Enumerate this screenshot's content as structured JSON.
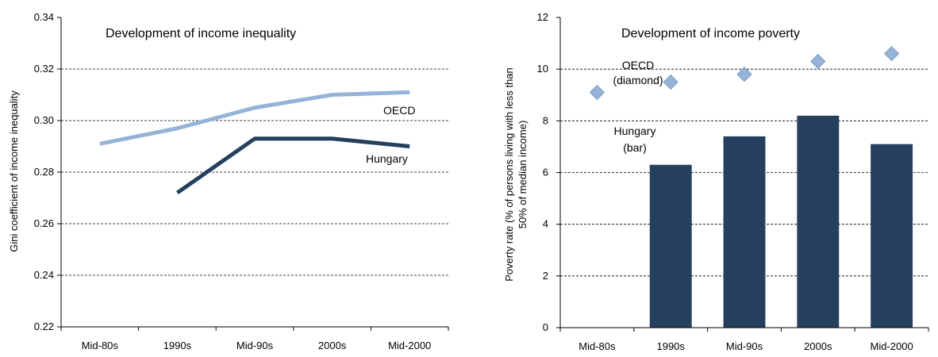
{
  "chart_data": [
    {
      "type": "line",
      "title": "Development of income inequality",
      "xlabel": "",
      "ylabel": "Gini coefficient of income inequality",
      "categories": [
        "Mid-80s",
        "1990s",
        "Mid-90s",
        "2000s",
        "Mid-2000"
      ],
      "ylim": [
        0.22,
        0.34
      ],
      "yticks": [
        "0.22",
        "0.24",
        "0.26",
        "0.28",
        "0.30",
        "0.32",
        "0.34"
      ],
      "grid": "horizontal dashed",
      "series": [
        {
          "name": "OECD",
          "label": "OECD",
          "color": "#95b3d7",
          "values": [
            0.291,
            0.297,
            0.305,
            0.31,
            0.311
          ]
        },
        {
          "name": "Hungary",
          "label": "Hungary",
          "color": "#253f5f",
          "values": [
            null,
            0.272,
            0.293,
            0.293,
            0.29
          ]
        }
      ]
    },
    {
      "type": "bar",
      "title": "Development of income poverty",
      "xlabel": "",
      "ylabel_lines": [
        "Poverty rate  (% of persons living with less than",
        "50% of median income)"
      ],
      "categories": [
        "Mid-80s",
        "1990s",
        "Mid-90s",
        "2000s",
        "Mid-2000"
      ],
      "ylim": [
        0,
        12
      ],
      "yticks": [
        "0",
        "2",
        "4",
        "6",
        "8",
        "10",
        "12"
      ],
      "grid": "horizontal dashed",
      "series": [
        {
          "name": "Hungary",
          "label_lines": [
            "Hungary",
            "(bar)"
          ],
          "mark": "bar",
          "color": "#253f5f",
          "values": [
            null,
            6.3,
            7.4,
            8.2,
            7.1
          ]
        },
        {
          "name": "OECD",
          "label_lines": [
            "OECD",
            "(diamond)"
          ],
          "mark": "diamond",
          "color": "#95b3d7",
          "values": [
            9.1,
            9.5,
            9.8,
            10.3,
            10.6
          ]
        }
      ]
    }
  ]
}
